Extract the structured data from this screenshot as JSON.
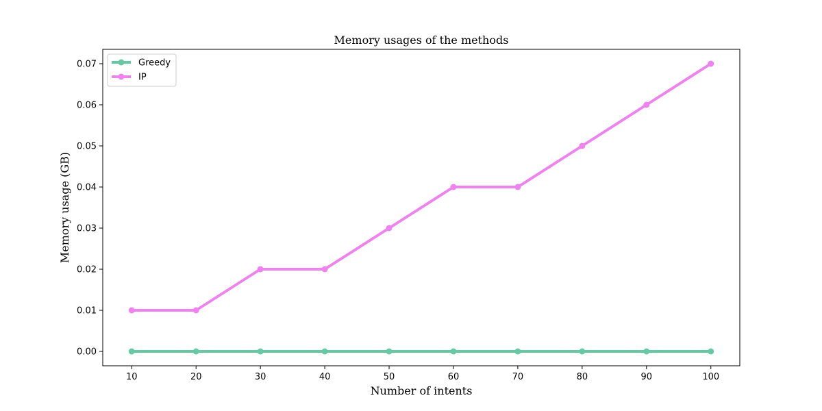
{
  "chart_data": {
    "type": "line",
    "title": "Memory usages of the methods",
    "xlabel": "Number of intents",
    "ylabel": "Memory usage (GB)",
    "x": [
      10,
      20,
      30,
      40,
      50,
      60,
      70,
      80,
      90,
      100
    ],
    "xlim": [
      5.5,
      104.5
    ],
    "ylim": [
      -0.0035,
      0.0735
    ],
    "xticks": [
      10,
      20,
      30,
      40,
      50,
      60,
      70,
      80,
      90,
      100
    ],
    "xtick_labels": [
      "10",
      "20",
      "30",
      "40",
      "50",
      "60",
      "70",
      "80",
      "90",
      "100"
    ],
    "yticks": [
      0.0,
      0.01,
      0.02,
      0.03,
      0.04,
      0.05,
      0.06,
      0.07
    ],
    "ytick_labels": [
      "0.00",
      "0.01",
      "0.02",
      "0.03",
      "0.04",
      "0.05",
      "0.06",
      "0.07"
    ],
    "grid": false,
    "legend_position": "upper-left",
    "series": [
      {
        "name": "Greedy",
        "color": "#66c9a3",
        "values": [
          0,
          0,
          0,
          0,
          0,
          0,
          0,
          0,
          0,
          0
        ]
      },
      {
        "name": "IP",
        "color": "#ee82ee",
        "values": [
          0.01,
          0.01,
          0.02,
          0.02,
          0.03,
          0.04,
          0.04,
          0.05,
          0.06,
          0.07
        ]
      }
    ]
  }
}
